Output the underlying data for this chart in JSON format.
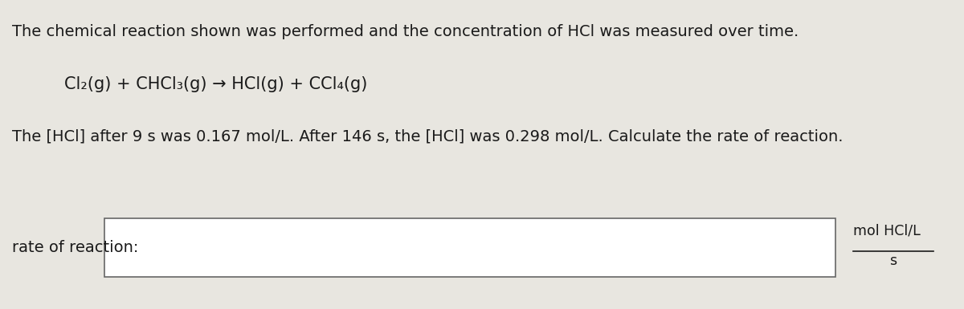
{
  "background_color": "#e8e6e0",
  "text_color": "#1a1a1a",
  "line1": "The chemical reaction shown was performed and the concentration of HCl was measured over time.",
  "reaction": "Cl₂(g) + CHCl₃(g) → HCl(g) + CCl₄(g)",
  "line3": "The [HCl] after 9 s was 0.167 mol/L. After 146 s, the [HCl] was 0.298 mol/L. Calculate the rate of reaction.",
  "label_left": "rate of reaction:",
  "unit_top": "mol HCl/L",
  "unit_bottom": "s",
  "font_size_main": 14,
  "font_size_reaction": 15,
  "font_size_unit": 12.5
}
